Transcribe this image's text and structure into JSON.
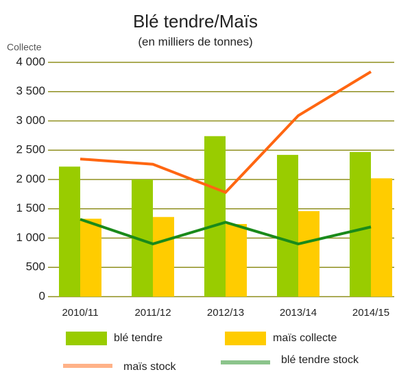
{
  "chart_data": {
    "type": "bar",
    "title": "Blé tendre/Maïs",
    "subtitle": "(en milliers de tonnes)",
    "y_label": "Collecte",
    "categories": [
      "2010/11",
      "2011/12",
      "2012/13",
      "2013/14",
      "2014/15"
    ],
    "series": [
      {
        "name": "blé tendre",
        "type": "bar",
        "color": "#99cc00",
        "values": [
          2220,
          2000,
          2740,
          2420,
          2470
        ]
      },
      {
        "name": "maïs collecte",
        "type": "bar",
        "color": "#ffcc00",
        "values": [
          1330,
          1360,
          1240,
          1460,
          2020
        ]
      },
      {
        "name": "maïs stock",
        "type": "line",
        "color": "#ff6611",
        "values": [
          2350,
          2260,
          1780,
          3090,
          3840
        ]
      },
      {
        "name": "blé tendre stock",
        "type": "line",
        "color": "#1a8a1a",
        "values": [
          1320,
          900,
          1270,
          900,
          1190
        ]
      }
    ],
    "ylim": [
      0,
      4000
    ],
    "yticks": [
      0,
      500,
      {
        "value": 1000,
        "label": "1 000"
      },
      {
        "value": 1500,
        "label": "1 500"
      },
      {
        "value": 2000,
        "label": "2 000"
      },
      {
        "value": 2500,
        "label": "2 500"
      },
      {
        "value": 3000,
        "label": "3 000"
      },
      {
        "value": 3500,
        "label": "3 500"
      },
      {
        "value": 4000,
        "label": "4 000"
      }
    ],
    "grid": true
  }
}
